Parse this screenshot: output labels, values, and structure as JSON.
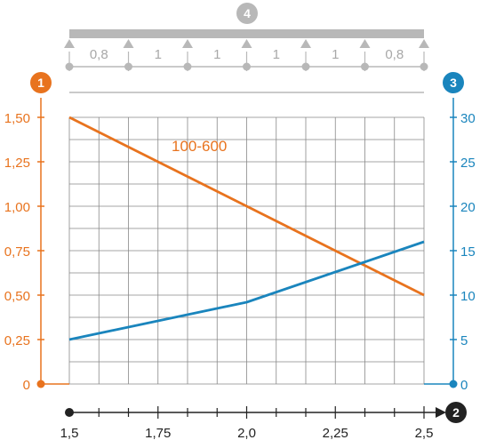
{
  "chart_data": {
    "type": "line",
    "colors": {
      "left_axis": "#e8731e",
      "right_axis": "#1a85bd",
      "grid": "#888888",
      "beam": "#b8b8b8",
      "beam_text": "#a8a8a8",
      "x_axis": "#222222"
    },
    "badges": {
      "left": "1",
      "bottom": "2",
      "right": "3",
      "top": "4"
    },
    "beam_spans": [
      {
        "x0": 1.5,
        "x1": 1.6667,
        "label": "0,8"
      },
      {
        "x0": 1.6667,
        "x1": 1.8333,
        "label": "1"
      },
      {
        "x0": 1.8333,
        "x1": 2.0,
        "label": "1"
      },
      {
        "x0": 2.0,
        "x1": 2.1667,
        "label": "1"
      },
      {
        "x0": 2.1667,
        "x1": 2.3333,
        "label": "1"
      },
      {
        "x0": 2.3333,
        "x1": 2.5,
        "label": "0,8"
      }
    ],
    "x_ticks": [
      {
        "value": 1.5,
        "label": "1,5"
      },
      {
        "value": 1.75,
        "label": "1,75"
      },
      {
        "value": 2.0,
        "label": "2,0"
      },
      {
        "value": 2.25,
        "label": "2,25"
      },
      {
        "value": 2.5,
        "label": "2,5"
      }
    ],
    "y_left_ticks": [
      {
        "value": 0,
        "label": "0"
      },
      {
        "value": 0.25,
        "label": "0,25"
      },
      {
        "value": 0.5,
        "label": "0,50"
      },
      {
        "value": 0.75,
        "label": "0,75"
      },
      {
        "value": 1.0,
        "label": "1,00"
      },
      {
        "value": 1.25,
        "label": "1,25"
      },
      {
        "value": 1.5,
        "label": "1,50"
      }
    ],
    "y_right_ticks": [
      {
        "value": 0,
        "label": "0"
      },
      {
        "value": 5,
        "label": "5"
      },
      {
        "value": 10,
        "label": "10"
      },
      {
        "value": 15,
        "label": "15"
      },
      {
        "value": 20,
        "label": "20"
      },
      {
        "value": 25,
        "label": "25"
      },
      {
        "value": 30,
        "label": "30"
      }
    ],
    "xlim": [
      1.5,
      2.5
    ],
    "ylim_left": [
      0,
      1.5
    ],
    "ylim_right": [
      0,
      30
    ],
    "grid": true,
    "series": [
      {
        "name": "100-600",
        "axis": "left",
        "color": "#e8731e",
        "x": [
          1.5,
          2.5
        ],
        "y": [
          1.5,
          0.5
        ]
      },
      {
        "axis": "right",
        "color": "#1a85bd",
        "x": [
          1.5,
          2.0,
          2.5
        ],
        "y": [
          5,
          9.2,
          16
        ]
      }
    ]
  }
}
